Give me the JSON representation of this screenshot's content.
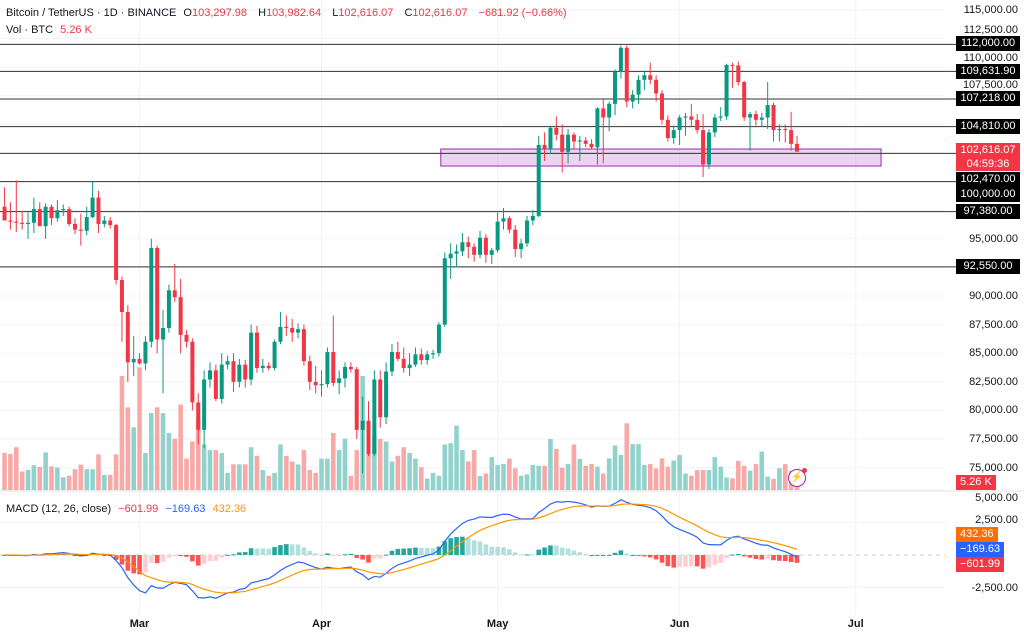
{
  "header": {
    "symbol": "Bitcoin / TetherUS · 1D · BINANCE",
    "o_label": "O",
    "o_value": "103,297.98",
    "h_label": "H",
    "h_value": "103,982.64",
    "l_label": "L",
    "l_value": "102,616.07",
    "c_label": "C",
    "c_value": "102,616.07",
    "change": "−681.92 (−0.66%)",
    "vol_label": "Vol · BTC",
    "vol_value": "5.26 K"
  },
  "macd_legend": {
    "title": "MACD (12, 26, close)",
    "histogram": "−601.99",
    "macd": "−169.63",
    "signal": "432.36"
  },
  "price_axis": {
    "ticks": [
      "115,000.00",
      "112,500.00",
      "110,000.00",
      "107,500.00",
      "95,000.00",
      "90,000.00",
      "87,500.00",
      "85,000.00",
      "82,500.00",
      "80,000.00",
      "77,500.00",
      "75,000.00"
    ],
    "tick_values": [
      115000,
      112500,
      110000,
      107500,
      95000,
      90000,
      87500,
      85000,
      82500,
      80000,
      77500,
      75000
    ]
  },
  "level_labels": [
    {
      "label": "112,000.00",
      "value": 112000
    },
    {
      "label": "109,631.90",
      "value": 109631.9
    },
    {
      "label": "107,218.00",
      "value": 107218
    },
    {
      "label": "104,810.00",
      "value": 104810
    },
    {
      "label": "102,470.00",
      "value": 102470
    },
    {
      "label": "100,000.00",
      "value": 100000
    },
    {
      "label": "97,380.00",
      "value": 97380
    },
    {
      "label": "92,550.00",
      "value": 92550
    }
  ],
  "current_price": {
    "value": "102,616.07",
    "countdown": "04:59:36"
  },
  "volume_box": "5.26 K",
  "macd_axis": {
    "ticks": [
      "5,000.00",
      "2,500.00",
      "-2,500.00"
    ],
    "tick_values": [
      5000,
      2500,
      -2500
    ]
  },
  "macd_boxes": {
    "signal": "432.36",
    "macd": "−169.63",
    "histogram": "−601.99"
  },
  "colors": {
    "up": "#089981",
    "down": "#f23645",
    "vol_up": "#92d2cc",
    "vol_down": "#f7a9a7",
    "macd": "#2962ff",
    "signal": "#ff9800",
    "zone": "#9c27b0",
    "level": "#333333"
  },
  "chart_data": {
    "type": "candlestick",
    "title": "Bitcoin / TetherUS · 1D · BINANCE",
    "ylim": [
      73500,
      115500
    ],
    "x_ticks": [
      {
        "label": "Mar",
        "index": 23
      },
      {
        "label": "Apr",
        "index": 54
      },
      {
        "label": "May",
        "index": 84
      },
      {
        "label": "Jun",
        "index": 115
      },
      {
        "label": "Jul",
        "index": 145
      }
    ],
    "levels": [
      112000,
      109631.9,
      107218,
      104810,
      102470,
      100000,
      97380,
      92550
    ],
    "zone": {
      "top": 102850,
      "bottom": 101360,
      "start_index": 75,
      "end_index": 150
    },
    "macd_params": [
      12,
      26,
      9
    ],
    "candles_fields": [
      "open",
      "high",
      "low",
      "close",
      "volume"
    ],
    "candles": [
      [
        97800,
        99500,
        96800,
        96600,
        13000
      ],
      [
        96600,
        98200,
        95800,
        96500,
        12600
      ],
      [
        96500,
        100100,
        95600,
        96400,
        15000
      ],
      [
        96400,
        97400,
        95800,
        96300,
        6500
      ],
      [
        96300,
        97300,
        95000,
        96400,
        7100
      ],
      [
        96400,
        98600,
        95500,
        97600,
        8700
      ],
      [
        97600,
        98200,
        96500,
        96100,
        8100
      ],
      [
        96100,
        98100,
        95000,
        97800,
        13200
      ],
      [
        97800,
        98000,
        96200,
        96800,
        8300
      ],
      [
        96800,
        98400,
        96500,
        97500,
        7900
      ],
      [
        97500,
        98000,
        97000,
        97600,
        4500
      ],
      [
        97600,
        97800,
        96100,
        96300,
        5000
      ],
      [
        96300,
        96800,
        95400,
        95800,
        7300
      ],
      [
        95800,
        97200,
        94400,
        95700,
        8900
      ],
      [
        95700,
        97800,
        95300,
        96900,
        7300
      ],
      [
        96900,
        100000,
        96800,
        98600,
        7300
      ],
      [
        98600,
        99200,
        95500,
        96300,
        12500
      ],
      [
        96300,
        97000,
        96000,
        96600,
        5300
      ],
      [
        96600,
        96900,
        95900,
        96200,
        5300
      ],
      [
        96200,
        96300,
        91000,
        91400,
        12500
      ],
      [
        91400,
        91700,
        86000,
        88600,
        40000
      ],
      [
        88600,
        89200,
        82500,
        84200,
        29000
      ],
      [
        84200,
        86500,
        83000,
        84500,
        22000
      ],
      [
        84500,
        85000,
        84000,
        84100,
        43000
      ],
      [
        84100,
        86500,
        83500,
        86000,
        13000
      ],
      [
        86000,
        95000,
        85500,
        94200,
        27000
      ],
      [
        94200,
        94400,
        85000,
        86200,
        29000
      ],
      [
        86200,
        88800,
        81500,
        87200,
        27000
      ],
      [
        87200,
        91000,
        86800,
        90500,
        20000
      ],
      [
        90500,
        92800,
        89500,
        89900,
        18000
      ],
      [
        89900,
        91500,
        85000,
        86600,
        30000
      ],
      [
        86600,
        87000,
        85500,
        86000,
        11000
      ],
      [
        86000,
        86300,
        80000,
        80700,
        17000
      ],
      [
        80700,
        81500,
        77000,
        78300,
        25000
      ],
      [
        78300,
        83500,
        76700,
        82700,
        16000
      ],
      [
        82700,
        84200,
        82000,
        83500,
        14000
      ],
      [
        83500,
        84000,
        80800,
        81000,
        14000
      ],
      [
        81000,
        85000,
        80600,
        84000,
        13000
      ],
      [
        84000,
        84800,
        83600,
        84300,
        6000
      ],
      [
        84300,
        85000,
        81600,
        82500,
        9000
      ],
      [
        82500,
        84500,
        82000,
        84000,
        9000
      ],
      [
        84000,
        84400,
        82000,
        82700,
        9000
      ],
      [
        82700,
        87500,
        82200,
        86800,
        15000
      ],
      [
        86800,
        87400,
        83300,
        83700,
        12000
      ],
      [
        83700,
        84500,
        83300,
        83900,
        7000
      ],
      [
        83900,
        84200,
        83500,
        83700,
        5000
      ],
      [
        83700,
        86200,
        83500,
        86000,
        6000
      ],
      [
        86000,
        88600,
        85800,
        87300,
        16000
      ],
      [
        87300,
        88300,
        86500,
        87200,
        12000
      ],
      [
        87200,
        88000,
        86000,
        86800,
        10000
      ],
      [
        86800,
        87600,
        86300,
        87100,
        9000
      ],
      [
        87100,
        87500,
        83900,
        84300,
        14000
      ],
      [
        84300,
        84800,
        81800,
        82500,
        7000
      ],
      [
        82500,
        83900,
        81500,
        82200,
        6000
      ],
      [
        82200,
        83500,
        81200,
        82300,
        11000
      ],
      [
        82300,
        85500,
        82000,
        85100,
        11000
      ],
      [
        85100,
        88300,
        82100,
        82400,
        20000
      ],
      [
        82400,
        83500,
        81400,
        82800,
        14000
      ],
      [
        82800,
        84200,
        82000,
        83800,
        18000
      ],
      [
        83800,
        84200,
        83300,
        83600,
        5000
      ],
      [
        83600,
        83800,
        77500,
        78300,
        14000
      ],
      [
        78300,
        81200,
        74500,
        79100,
        40000
      ],
      [
        79100,
        80800,
        76000,
        76200,
        13000
      ],
      [
        76200,
        83500,
        76000,
        82700,
        19000
      ],
      [
        82700,
        83500,
        78500,
        79400,
        18000
      ],
      [
        79400,
        84200,
        78800,
        83400,
        17000
      ],
      [
        83400,
        85800,
        83000,
        85100,
        10000
      ],
      [
        85100,
        86000,
        84300,
        84500,
        12000
      ],
      [
        84500,
        85500,
        83300,
        83700,
        15000
      ],
      [
        83700,
        85000,
        83000,
        84000,
        13000
      ],
      [
        84000,
        85500,
        83800,
        84900,
        11000
      ],
      [
        84900,
        85400,
        84000,
        84400,
        8000
      ],
      [
        84400,
        85200,
        84000,
        84900,
        4000
      ],
      [
        84900,
        85300,
        84500,
        85000,
        6000
      ],
      [
        85000,
        87700,
        84700,
        87500,
        5000
      ],
      [
        87500,
        93800,
        87300,
        93300,
        16000
      ],
      [
        93300,
        94600,
        91500,
        93700,
        16400
      ],
      [
        93700,
        94500,
        92500,
        93900,
        22600
      ],
      [
        93900,
        95500,
        93500,
        94700,
        14000
      ],
      [
        94700,
        95200,
        93300,
        94300,
        10000
      ],
      [
        94300,
        94600,
        93000,
        93600,
        14000
      ],
      [
        93600,
        95700,
        93300,
        95100,
        4900
      ],
      [
        95100,
        95400,
        92900,
        93600,
        5800
      ],
      [
        93600,
        94200,
        92800,
        94000,
        11500
      ],
      [
        94000,
        97300,
        93800,
        96500,
        8800
      ],
      [
        96500,
        97700,
        95800,
        96800,
        9100
      ],
      [
        96800,
        97000,
        95500,
        95800,
        11000
      ],
      [
        95800,
        96200,
        93400,
        94100,
        7600
      ],
      [
        94100,
        95000,
        93300,
        94600,
        5000
      ],
      [
        94600,
        97000,
        94300,
        96600,
        5500
      ],
      [
        96600,
        97500,
        96200,
        97000,
        8800
      ],
      [
        97000,
        104000,
        96900,
        103200,
        8500
      ],
      [
        103200,
        104300,
        101800,
        102900,
        8500
      ],
      [
        102900,
        104800,
        102400,
        104700,
        17900
      ],
      [
        104700,
        105700,
        103600,
        104100,
        14400
      ],
      [
        104100,
        105000,
        100800,
        102600,
        7800
      ],
      [
        102600,
        104600,
        101600,
        104100,
        9100
      ],
      [
        104100,
        104300,
        102800,
        103500,
        16000
      ],
      [
        103500,
        104000,
        101800,
        103600,
        10900
      ],
      [
        103600,
        103900,
        103000,
        103300,
        8500
      ],
      [
        103300,
        103700,
        102800,
        103000,
        9100
      ],
      [
        103000,
        106500,
        101500,
        106400,
        8200
      ],
      [
        106400,
        107300,
        101600,
        105600,
        5800
      ],
      [
        105600,
        107000,
        104400,
        106800,
        11100
      ],
      [
        106800,
        109800,
        105800,
        109600,
        15600
      ],
      [
        109600,
        111900,
        109000,
        111700,
        12300
      ],
      [
        111700,
        111900,
        106500,
        107000,
        23400
      ],
      [
        107000,
        108000,
        106400,
        107600,
        16100
      ],
      [
        107600,
        109300,
        106800,
        108900,
        16100
      ],
      [
        108900,
        109700,
        108000,
        109300,
        8800
      ],
      [
        109300,
        110400,
        108500,
        108900,
        9100
      ],
      [
        108900,
        109300,
        107000,
        107700,
        7600
      ],
      [
        107700,
        108000,
        105000,
        105400,
        11100
      ],
      [
        105400,
        105800,
        103500,
        103800,
        8200
      ],
      [
        103800,
        104900,
        103300,
        104500,
        10300
      ],
      [
        104500,
        105800,
        103200,
        105600,
        12300
      ],
      [
        105600,
        106000,
        104000,
        105700,
        5800
      ],
      [
        105700,
        106800,
        104800,
        105400,
        5000
      ],
      [
        105400,
        105900,
        104200,
        104500,
        7000
      ],
      [
        104500,
        105900,
        100400,
        101500,
        7000
      ],
      [
        101500,
        104600,
        101100,
        104300,
        7000
      ],
      [
        104300,
        105900,
        103900,
        105600,
        11500
      ],
      [
        105600,
        106500,
        105300,
        105700,
        8200
      ],
      [
        105700,
        110300,
        105400,
        110200,
        4400
      ],
      [
        110200,
        110400,
        108200,
        110150,
        4100
      ],
      [
        110150,
        110500,
        108400,
        108700,
        10200
      ],
      [
        108700,
        108800,
        105300,
        105600,
        8500
      ],
      [
        105600,
        106100,
        102700,
        105900,
        6800
      ],
      [
        105900,
        106200,
        104900,
        105400,
        9100
      ],
      [
        105400,
        106000,
        104800,
        105600,
        13500
      ],
      [
        105600,
        108700,
        104600,
        106700,
        4700
      ],
      [
        106700,
        106900,
        103500,
        104500,
        3900
      ],
      [
        104500,
        105000,
        103500,
        104600,
        7600
      ],
      [
        104600,
        105000,
        103400,
        104500,
        9100
      ],
      [
        104500,
        106100,
        102700,
        103298,
        6800
      ],
      [
        103297.98,
        103982.64,
        102616.07,
        102616.07,
        5260
      ]
    ]
  }
}
